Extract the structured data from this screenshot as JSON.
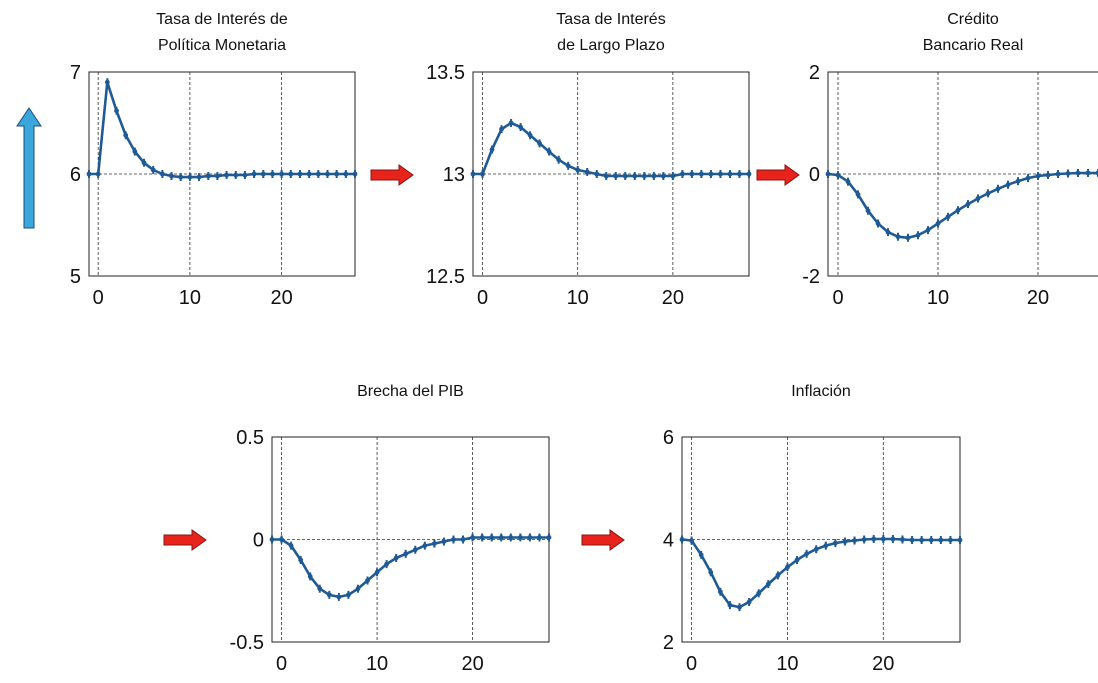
{
  "colors": {
    "series": "#1f5a94",
    "rise_arrow": "#3aa6dc",
    "flow_arrow": "#e8231c"
  },
  "icons": {
    "rise": "up-arrow-icon",
    "flow": "right-arrow-icon"
  },
  "chart_data": [
    {
      "type": "line",
      "title_lines": [
        "Tasa de Interés de",
        "Política Monetaria"
      ],
      "xlabel": "",
      "ylabel": "",
      "xlim": [
        -1,
        28
      ],
      "ylim": [
        5,
        7
      ],
      "xticks": [
        0,
        10,
        20
      ],
      "yticks": [
        5,
        6,
        7
      ],
      "ytick_labels": [
        "5",
        "6",
        "7"
      ],
      "grid": "dashed at x ticks and at baseline y",
      "baseline": 6,
      "series": [
        {
          "x": [
            -1,
            0,
            1,
            2,
            3,
            4,
            5,
            6,
            7,
            8,
            9,
            10,
            11,
            12,
            13,
            14,
            15,
            16,
            17,
            18,
            19,
            20,
            21,
            22,
            23,
            24,
            25,
            26,
            27,
            28
          ],
          "values": [
            6,
            6,
            6.9,
            6.62,
            6.38,
            6.22,
            6.11,
            6.04,
            6,
            5.98,
            5.97,
            5.97,
            5.97,
            5.98,
            5.98,
            5.99,
            5.99,
            5.99,
            6,
            6,
            6,
            6,
            6,
            6,
            6,
            6,
            6,
            6,
            6,
            6
          ]
        }
      ]
    },
    {
      "type": "line",
      "title_lines": [
        "Tasa de Interés",
        "de Largo Plazo"
      ],
      "xlabel": "",
      "ylabel": "",
      "xlim": [
        -1,
        28
      ],
      "ylim": [
        12.5,
        13.5
      ],
      "xticks": [
        0,
        10,
        20
      ],
      "yticks": [
        12.5,
        13,
        13.5
      ],
      "ytick_labels": [
        "12.5",
        "13",
        "13.5"
      ],
      "grid": "dashed at x ticks and at baseline y",
      "baseline": 13,
      "series": [
        {
          "x": [
            -1,
            0,
            1,
            2,
            3,
            4,
            5,
            6,
            7,
            8,
            9,
            10,
            11,
            12,
            13,
            14,
            15,
            16,
            17,
            18,
            19,
            20,
            21,
            22,
            23,
            24,
            25,
            26,
            27,
            28
          ],
          "values": [
            13,
            13,
            13.12,
            13.22,
            13.25,
            13.23,
            13.19,
            13.15,
            13.11,
            13.07,
            13.04,
            13.02,
            13.01,
            13,
            12.99,
            12.99,
            12.99,
            12.99,
            12.99,
            12.99,
            12.99,
            12.99,
            13,
            13,
            13,
            13,
            13,
            13,
            13,
            13
          ]
        }
      ]
    },
    {
      "type": "line",
      "title_lines": [
        "Crédito",
        "Bancario Real"
      ],
      "xlabel": "",
      "ylabel": "",
      "xlim": [
        -1,
        28
      ],
      "ylim": [
        -2,
        2
      ],
      "xticks": [
        0,
        10,
        20
      ],
      "yticks": [
        -2,
        0,
        2
      ],
      "ytick_labels": [
        "-2",
        "0",
        "2"
      ],
      "grid": "dashed at x ticks and at baseline y",
      "baseline": 0,
      "series": [
        {
          "x": [
            -1,
            0,
            1,
            2,
            3,
            4,
            5,
            6,
            7,
            8,
            9,
            10,
            11,
            12,
            13,
            14,
            15,
            16,
            17,
            18,
            19,
            20,
            21,
            22,
            23,
            24,
            25,
            26,
            27,
            28
          ],
          "values": [
            0,
            -0.02,
            -0.15,
            -0.4,
            -0.72,
            -0.97,
            -1.14,
            -1.23,
            -1.25,
            -1.2,
            -1.1,
            -0.97,
            -0.84,
            -0.71,
            -0.59,
            -0.48,
            -0.38,
            -0.29,
            -0.21,
            -0.14,
            -0.08,
            -0.04,
            -0.02,
            0,
            0.01,
            0.02,
            0.02,
            0.02,
            0.02,
            0.02
          ]
        }
      ]
    },
    {
      "type": "line",
      "title_lines": [
        "Brecha del PIB"
      ],
      "xlabel": "",
      "ylabel": "",
      "xlim": [
        -1,
        28
      ],
      "ylim": [
        -0.5,
        0.5
      ],
      "xticks": [
        0,
        10,
        20
      ],
      "yticks": [
        -0.5,
        0,
        0.5
      ],
      "ytick_labels": [
        "-0.5",
        "0",
        "0.5"
      ],
      "grid": "dashed at x ticks and at baseline y",
      "baseline": 0,
      "series": [
        {
          "x": [
            -1,
            0,
            1,
            2,
            3,
            4,
            5,
            6,
            7,
            8,
            9,
            10,
            11,
            12,
            13,
            14,
            15,
            16,
            17,
            18,
            19,
            20,
            21,
            22,
            23,
            24,
            25,
            26,
            27,
            28
          ],
          "values": [
            0,
            0,
            -0.03,
            -0.1,
            -0.18,
            -0.24,
            -0.27,
            -0.28,
            -0.27,
            -0.24,
            -0.2,
            -0.16,
            -0.12,
            -0.09,
            -0.07,
            -0.05,
            -0.03,
            -0.02,
            -0.01,
            0,
            0,
            0.01,
            0.01,
            0.01,
            0.01,
            0.01,
            0.01,
            0.01,
            0.01,
            0.01
          ]
        }
      ]
    },
    {
      "type": "line",
      "title_lines": [
        "Inflación"
      ],
      "xlabel": "",
      "ylabel": "",
      "xlim": [
        -1,
        28
      ],
      "ylim": [
        2,
        6
      ],
      "xticks": [
        0,
        10,
        20
      ],
      "yticks": [
        2,
        4,
        6
      ],
      "ytick_labels": [
        "2",
        "4",
        "6"
      ],
      "grid": "dashed at x ticks and at baseline y",
      "baseline": 4,
      "series": [
        {
          "x": [
            -1,
            0,
            1,
            2,
            3,
            4,
            5,
            6,
            7,
            8,
            9,
            10,
            11,
            12,
            13,
            14,
            15,
            16,
            17,
            18,
            19,
            20,
            21,
            22,
            23,
            24,
            25,
            26,
            27,
            28
          ],
          "values": [
            4,
            3.98,
            3.7,
            3.36,
            2.98,
            2.72,
            2.68,
            2.78,
            2.95,
            3.13,
            3.3,
            3.46,
            3.6,
            3.72,
            3.81,
            3.88,
            3.93,
            3.96,
            3.98,
            4,
            4.01,
            4.01,
            4.01,
            4,
            3.99,
            3.99,
            3.99,
            3.99,
            3.99,
            3.99
          ]
        }
      ]
    }
  ]
}
